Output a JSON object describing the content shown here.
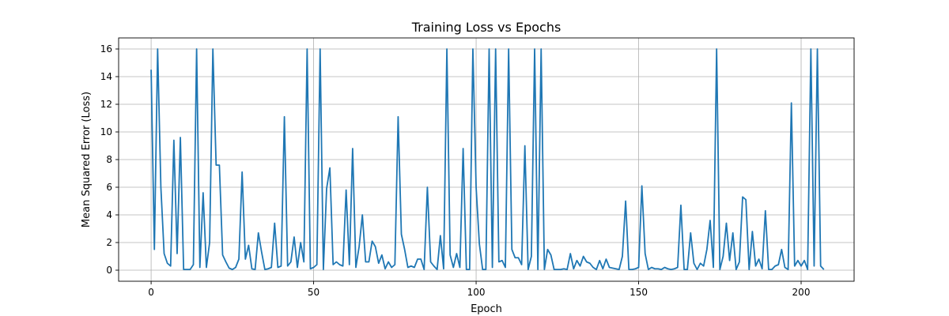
{
  "chart_data": {
    "type": "line",
    "title": "Training Loss vs Epochs",
    "xlabel": "Epoch",
    "ylabel": "Mean Squared Error (Loss)",
    "xlim": [
      -10,
      216.3
    ],
    "ylim": [
      -0.8,
      16.8
    ],
    "xticks": [
      0,
      50,
      100,
      150,
      200
    ],
    "yticks": [
      0,
      2,
      4,
      6,
      8,
      10,
      12,
      14,
      16
    ],
    "grid": true,
    "line_color": "#1f77b4",
    "series": [
      {
        "values": [
          14.5,
          1.5,
          16.0,
          6.0,
          1.2,
          0.5,
          0.3,
          9.4,
          1.2,
          9.6,
          0.05,
          0.05,
          0.05,
          0.4,
          16.0,
          0.2,
          5.6,
          0.2,
          2.0,
          16.0,
          7.6,
          7.6,
          1.1,
          0.6,
          0.15,
          0.05,
          0.2,
          0.8,
          7.1,
          0.8,
          1.8,
          0.1,
          0.05,
          2.7,
          1.3,
          0.05,
          0.1,
          0.2,
          3.4,
          0.2,
          0.3,
          11.1,
          0.3,
          0.6,
          2.4,
          0.2,
          2.0,
          0.6,
          16.0,
          0.1,
          0.2,
          0.4,
          16.0,
          0.05,
          5.9,
          7.4,
          0.4,
          0.6,
          0.4,
          0.3,
          5.8,
          0.4,
          8.8,
          0.2,
          1.7,
          4.0,
          0.6,
          0.6,
          2.1,
          1.7,
          0.5,
          1.1,
          0.1,
          0.6,
          0.2,
          0.4,
          11.1,
          2.6,
          1.5,
          0.2,
          0.3,
          0.2,
          0.8,
          0.8,
          0.05,
          6.0,
          0.6,
          0.3,
          0.05,
          2.5,
          0.1,
          16.0,
          1.1,
          0.2,
          1.2,
          0.2,
          8.8,
          0.05,
          0.05,
          16.0,
          6.0,
          1.9,
          0.05,
          0.05,
          16.0,
          0.2,
          16.0,
          0.6,
          0.7,
          0.2,
          16.0,
          1.5,
          0.9,
          0.9,
          0.4,
          9.0,
          0.05,
          1.0,
          16.0,
          0.05,
          16.0,
          0.05,
          1.5,
          1.1,
          0.05,
          0.05,
          0.05,
          0.1,
          0.05,
          1.2,
          0.1,
          0.7,
          0.3,
          1.0,
          0.6,
          0.5,
          0.2,
          0.05,
          0.7,
          0.1,
          0.8,
          0.2,
          0.15,
          0.1,
          0.05,
          1.0,
          5.0,
          0.05,
          0.05,
          0.1,
          0.2,
          6.1,
          1.2,
          0.05,
          0.2,
          0.1,
          0.1,
          0.05,
          0.2,
          0.1,
          0.05,
          0.1,
          0.2,
          4.7,
          0.05,
          0.05,
          2.7,
          0.5,
          0.05,
          0.5,
          0.3,
          1.5,
          3.6,
          0.2,
          16.0,
          0.05,
          1.0,
          3.4,
          0.7,
          2.7,
          0.05,
          0.6,
          5.3,
          5.1,
          0.05,
          2.8,
          0.3,
          0.8,
          0.1,
          4.3,
          0.05,
          0.05,
          0.3,
          0.4,
          1.5,
          0.2,
          0.05,
          12.1,
          0.3,
          0.7,
          0.3,
          0.7,
          0.05,
          16.0,
          0.3,
          16.0,
          0.3,
          0.05
        ]
      }
    ]
  }
}
